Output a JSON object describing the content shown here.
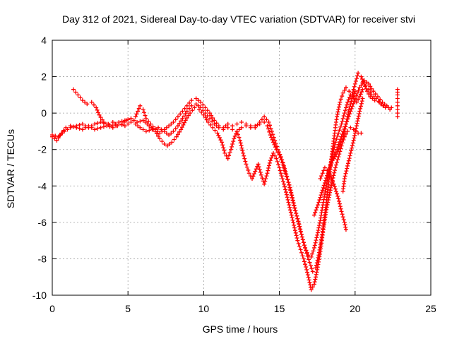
{
  "chart_data": {
    "type": "scatter",
    "title": "Day 312 of 2021, Sidereal Day-to-day VTEC variation (SDTVAR) for receiver stvi",
    "xlabel": "GPS time / hours",
    "ylabel": "SDTVAR / TECUs",
    "xlim": [
      0,
      25
    ],
    "ylim": [
      -10,
      4
    ],
    "xticks": [
      0,
      5,
      10,
      15,
      20,
      25
    ],
    "yticks": [
      -10,
      -8,
      -6,
      -4,
      -2,
      0,
      2,
      4
    ],
    "grid": true,
    "marker": "+",
    "color": "#ff0000",
    "series": [
      {
        "points": [
          [
            0.0,
            -1.3
          ],
          [
            0.3,
            -1.5
          ],
          [
            0.6,
            -1.1
          ],
          [
            0.9,
            -0.8
          ],
          [
            1.2,
            -0.7
          ],
          [
            1.6,
            -0.8
          ],
          [
            2.0,
            -0.9
          ],
          [
            2.4,
            -0.7
          ],
          [
            2.8,
            -0.9
          ],
          [
            3.2,
            -0.8
          ],
          [
            3.6,
            -0.7
          ],
          [
            4.0,
            -0.8
          ],
          [
            4.4,
            -0.6
          ],
          [
            4.8,
            -0.7
          ],
          [
            5.2,
            -0.5
          ],
          [
            5.5,
            -0.6
          ],
          [
            5.8,
            -0.8
          ],
          [
            6.2,
            -1.0
          ],
          [
            6.6,
            -0.9
          ],
          [
            7.0,
            -0.8
          ],
          [
            7.4,
            -1.0
          ],
          [
            7.7,
            -1.2
          ],
          [
            8.0,
            -1.0
          ],
          [
            8.3,
            -0.7
          ],
          [
            8.6,
            -0.3
          ],
          [
            8.9,
            0.1
          ],
          [
            9.2,
            0.4
          ],
          [
            9.5,
            0.5
          ],
          [
            9.8,
            0.3
          ],
          [
            10.1,
            0.0
          ],
          [
            10.4,
            -0.3
          ],
          [
            10.7,
            -0.6
          ],
          [
            11.0,
            -0.8
          ],
          [
            11.3,
            -0.9
          ],
          [
            11.6,
            -0.8
          ],
          [
            11.9,
            -0.9
          ],
          [
            12.2,
            -1.0
          ],
          [
            12.5,
            -0.8
          ],
          [
            12.8,
            -0.7
          ],
          [
            13.1,
            -0.8
          ],
          [
            13.4,
            -0.7
          ],
          [
            13.7,
            -0.6
          ],
          [
            14.0,
            -0.5
          ],
          [
            14.2,
            -0.7
          ],
          [
            14.4,
            -1.2
          ],
          [
            14.6,
            -1.6
          ],
          [
            14.8,
            -2.0
          ],
          [
            15.0,
            -2.3
          ],
          [
            15.2,
            -2.7
          ],
          [
            15.4,
            -3.3
          ],
          [
            15.6,
            -3.8
          ],
          [
            15.8,
            -4.5
          ],
          [
            16.0,
            -5.2
          ],
          [
            16.2,
            -5.8
          ],
          [
            16.4,
            -6.5
          ],
          [
            16.6,
            -7.1
          ],
          [
            16.8,
            -7.7
          ],
          [
            17.0,
            -8.2
          ],
          [
            17.2,
            -8.7
          ],
          [
            17.4,
            -8.5
          ],
          [
            17.6,
            -7.8
          ],
          [
            17.8,
            -6.8
          ],
          [
            18.0,
            -5.6
          ],
          [
            18.2,
            -4.2
          ],
          [
            18.4,
            -2.8
          ],
          [
            18.6,
            -1.4
          ],
          [
            18.8,
            -0.2
          ],
          [
            19.0,
            0.6
          ],
          [
            19.2,
            1.1
          ],
          [
            19.4,
            1.4
          ],
          [
            19.6,
            1.2
          ],
          [
            19.8,
            1.0
          ],
          [
            20.0,
            1.6
          ],
          [
            20.2,
            2.2
          ],
          [
            20.4,
            2.0
          ],
          [
            20.6,
            1.6
          ],
          [
            20.8,
            1.2
          ],
          [
            21.0,
            0.9
          ],
          [
            21.3,
            0.7
          ],
          [
            21.6,
            0.6
          ],
          [
            21.9,
            0.4
          ],
          [
            22.2,
            0.3
          ]
        ]
      },
      {
        "points": [
          [
            0.0,
            -1.2
          ],
          [
            0.4,
            -1.3
          ],
          [
            0.8,
            -1.0
          ],
          [
            1.2,
            -0.8
          ],
          [
            1.6,
            -0.7
          ],
          [
            2.0,
            -0.6
          ],
          [
            2.4,
            -0.8
          ],
          [
            2.8,
            -0.6
          ],
          [
            3.2,
            -0.5
          ],
          [
            3.6,
            -0.6
          ],
          [
            4.0,
            -0.7
          ],
          [
            4.4,
            -0.5
          ],
          [
            4.8,
            -0.4
          ],
          [
            5.2,
            -0.3
          ],
          [
            5.6,
            -0.5
          ],
          [
            6.0,
            -0.4
          ],
          [
            6.4,
            -0.7
          ],
          [
            6.8,
            -1.0
          ],
          [
            7.1,
            -1.4
          ],
          [
            7.4,
            -1.7
          ],
          [
            7.6,
            -1.8
          ],
          [
            7.9,
            -1.6
          ],
          [
            8.2,
            -1.3
          ],
          [
            8.5,
            -0.9
          ],
          [
            8.8,
            -0.4
          ],
          [
            9.1,
            0.0
          ],
          [
            9.4,
            0.3
          ],
          [
            9.7,
            0.2
          ],
          [
            10.0,
            -0.1
          ],
          [
            10.3,
            -0.5
          ],
          [
            10.6,
            -0.8
          ],
          [
            10.9,
            -1.1
          ],
          [
            11.2,
            -1.6
          ],
          [
            11.4,
            -2.2
          ],
          [
            11.6,
            -2.5
          ],
          [
            11.8,
            -2.0
          ],
          [
            12.0,
            -1.4
          ],
          [
            12.2,
            -1.0
          ],
          [
            12.4,
            -1.5
          ],
          [
            12.6,
            -2.2
          ],
          [
            12.8,
            -2.8
          ],
          [
            13.0,
            -3.3
          ],
          [
            13.2,
            -3.6
          ],
          [
            13.4,
            -3.2
          ],
          [
            13.6,
            -2.8
          ],
          [
            13.8,
            -3.4
          ],
          [
            14.0,
            -3.9
          ],
          [
            14.2,
            -3.3
          ],
          [
            14.4,
            -2.6
          ],
          [
            14.6,
            -2.2
          ],
          [
            14.8,
            -2.5
          ],
          [
            15.0,
            -3.0
          ],
          [
            15.2,
            -3.6
          ],
          [
            15.4,
            -4.2
          ],
          [
            15.6,
            -4.9
          ],
          [
            15.8,
            -5.6
          ],
          [
            16.0,
            -6.3
          ],
          [
            16.2,
            -7.0
          ],
          [
            16.4,
            -7.5
          ],
          [
            16.6,
            -8.0
          ],
          [
            16.8,
            -8.6
          ],
          [
            17.0,
            -9.3
          ],
          [
            17.1,
            -9.7
          ],
          [
            17.3,
            -9.4
          ],
          [
            17.5,
            -8.6
          ],
          [
            17.7,
            -7.6
          ],
          [
            17.9,
            -6.4
          ],
          [
            18.1,
            -5.3
          ],
          [
            18.3,
            -4.5
          ],
          [
            18.5,
            -3.7
          ],
          [
            18.7,
            -3.0
          ],
          [
            18.9,
            -2.4
          ],
          [
            19.1,
            -1.8
          ],
          [
            19.3,
            -1.3
          ],
          [
            19.5,
            -1.0
          ],
          [
            19.7,
            -0.8
          ],
          [
            19.9,
            -0.9
          ],
          [
            20.2,
            -1.1
          ],
          [
            20.4,
            -1.1
          ]
        ]
      },
      {
        "points": [
          [
            1.4,
            1.3
          ],
          [
            1.7,
            1.0
          ],
          [
            2.0,
            0.7
          ],
          [
            2.3,
            0.5
          ],
          [
            2.6,
            0.6
          ],
          [
            2.9,
            0.3
          ],
          [
            3.1,
            -0.1
          ],
          [
            3.4,
            -0.5
          ],
          [
            3.7,
            -0.6
          ],
          [
            4.0,
            -0.5
          ],
          [
            4.3,
            -0.7
          ],
          [
            4.6,
            -0.6
          ],
          [
            4.9,
            -0.4
          ],
          [
            5.2,
            -0.3
          ],
          [
            5.5,
            -0.2
          ],
          [
            5.8,
            0.4
          ],
          [
            6.0,
            0.2
          ],
          [
            6.2,
            -0.3
          ],
          [
            6.5,
            -0.6
          ],
          [
            6.8,
            -0.9
          ],
          [
            7.1,
            -1.1
          ],
          [
            7.4,
            -0.9
          ],
          [
            7.7,
            -0.7
          ],
          [
            8.0,
            -0.5
          ],
          [
            8.3,
            -0.2
          ],
          [
            8.6,
            0.1
          ],
          [
            8.9,
            0.4
          ],
          [
            9.2,
            0.7
          ],
          [
            9.5,
            0.8
          ],
          [
            9.8,
            0.6
          ],
          [
            10.1,
            0.3
          ],
          [
            10.4,
            0.0
          ],
          [
            10.7,
            -0.4
          ],
          [
            11.0,
            -0.7
          ],
          [
            11.3,
            -0.8
          ],
          [
            11.6,
            -0.6
          ],
          [
            11.9,
            -0.7
          ],
          [
            12.2,
            -0.6
          ],
          [
            12.5,
            -0.5
          ],
          [
            12.8,
            -0.6
          ],
          [
            13.1,
            -0.7
          ],
          [
            13.4,
            -0.8
          ],
          [
            13.7,
            -0.5
          ],
          [
            14.0,
            -0.2
          ],
          [
            14.3,
            -0.5
          ],
          [
            14.5,
            -1.0
          ],
          [
            14.7,
            -1.5
          ],
          [
            14.9,
            -2.0
          ],
          [
            15.1,
            -2.4
          ],
          [
            15.3,
            -2.9
          ],
          [
            15.5,
            -3.5
          ],
          [
            15.7,
            -4.1
          ],
          [
            15.9,
            -4.8
          ],
          [
            16.1,
            -5.5
          ],
          [
            16.3,
            -6.1
          ],
          [
            16.5,
            -6.8
          ],
          [
            16.7,
            -7.4
          ],
          [
            16.9,
            -7.8
          ],
          [
            17.1,
            -7.9
          ],
          [
            17.3,
            -7.4
          ],
          [
            17.5,
            -6.7
          ],
          [
            17.7,
            -5.9
          ],
          [
            17.9,
            -4.9
          ],
          [
            18.1,
            -4.0
          ],
          [
            18.3,
            -3.1
          ],
          [
            18.5,
            -2.3
          ],
          [
            18.7,
            -1.6
          ],
          [
            18.9,
            -1.1
          ],
          [
            19.1,
            -0.6
          ],
          [
            19.3,
            0.0
          ],
          [
            19.5,
            0.6
          ],
          [
            19.7,
            1.0
          ],
          [
            19.9,
            0.9
          ],
          [
            20.1,
            0.6
          ],
          [
            20.3,
            0.9
          ],
          [
            20.5,
            1.3
          ],
          [
            20.7,
            1.5
          ],
          [
            20.9,
            1.3
          ],
          [
            21.1,
            1.0
          ],
          [
            21.4,
            0.8
          ],
          [
            21.7,
            0.5
          ],
          [
            22.0,
            0.3
          ],
          [
            22.3,
            0.2
          ]
        ]
      },
      {
        "points": [
          [
            17.3,
            -5.6
          ],
          [
            17.6,
            -4.9
          ],
          [
            17.9,
            -4.1
          ],
          [
            18.2,
            -3.3
          ],
          [
            18.5,
            -2.6
          ],
          [
            18.8,
            -2.0
          ],
          [
            19.1,
            -1.3
          ],
          [
            19.4,
            -0.6
          ],
          [
            19.7,
            0.1
          ],
          [
            20.0,
            0.8
          ],
          [
            20.3,
            1.4
          ],
          [
            20.6,
            1.8
          ],
          [
            20.9,
            1.6
          ],
          [
            21.2,
            1.2
          ],
          [
            21.5,
            0.9
          ],
          [
            21.8,
            0.6
          ],
          [
            22.1,
            0.4
          ],
          [
            22.4,
            0.3
          ]
        ]
      },
      {
        "points": [
          [
            17.7,
            -3.6
          ],
          [
            18.0,
            -3.0
          ],
          [
            18.3,
            -3.3
          ],
          [
            18.6,
            -3.9
          ],
          [
            18.9,
            -4.7
          ],
          [
            19.1,
            -5.4
          ],
          [
            19.3,
            -6.0
          ],
          [
            19.4,
            -6.4
          ]
        ]
      },
      {
        "points": [
          [
            18.6,
            -2.5
          ],
          [
            18.9,
            -2.0
          ],
          [
            19.2,
            -1.4
          ],
          [
            19.4,
            -0.6
          ],
          [
            19.6,
            0.2
          ],
          [
            19.8,
            0.8
          ],
          [
            20.0,
            1.2
          ]
        ]
      },
      {
        "points": [
          [
            19.2,
            -4.3
          ],
          [
            19.3,
            -3.6
          ],
          [
            19.5,
            -2.9
          ],
          [
            19.7,
            -2.2
          ],
          [
            19.9,
            -1.5
          ],
          [
            20.1,
            -0.7
          ],
          [
            20.3,
            0.1
          ],
          [
            20.5,
            0.8
          ]
        ]
      },
      {
        "points": [
          [
            22.8,
            -0.2
          ],
          [
            22.8,
            0.2
          ],
          [
            22.8,
            0.6
          ],
          [
            22.8,
            1.0
          ],
          [
            22.8,
            1.3
          ]
        ]
      }
    ]
  }
}
